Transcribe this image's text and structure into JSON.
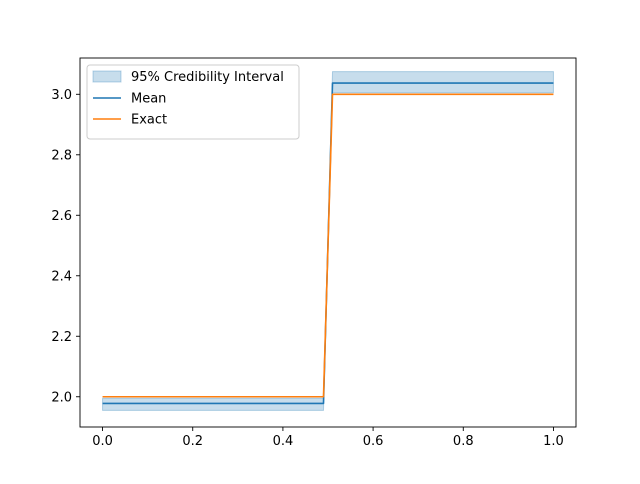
{
  "chart_data": {
    "type": "line",
    "title": "",
    "xlabel": "",
    "ylabel": "",
    "xlim": [
      -0.05,
      1.05
    ],
    "ylim": [
      1.9,
      3.12
    ],
    "xticks": [
      0.0,
      0.2,
      0.4,
      0.6,
      0.8,
      1.0
    ],
    "xtick_labels": [
      "0.0",
      "0.2",
      "0.4",
      "0.6",
      "0.8",
      "1.0"
    ],
    "yticks": [
      2.0,
      2.2,
      2.4,
      2.6,
      2.8,
      3.0
    ],
    "ytick_labels": [
      "2.0",
      "2.2",
      "2.4",
      "2.6",
      "2.8",
      "3.0"
    ],
    "grid": false,
    "legend_position": "top-left",
    "interval": {
      "name": "95% Credibility Interval",
      "color": "#1f77b4",
      "opacity": 0.25,
      "x": [
        0.0,
        0.49,
        0.51,
        1.0
      ],
      "lower": [
        1.955,
        1.955,
        3.005,
        3.005
      ],
      "upper": [
        1.995,
        1.995,
        3.075,
        3.075
      ]
    },
    "series": [
      {
        "name": "Mean",
        "color": "#1f77b4",
        "x": [
          0.0,
          0.49,
          0.51,
          1.0
        ],
        "y": [
          1.978,
          1.978,
          3.037,
          3.037
        ]
      },
      {
        "name": "Exact",
        "color": "#ff7f0e",
        "x": [
          0.0,
          0.49,
          0.51,
          1.0
        ],
        "y": [
          2.0,
          2.0,
          3.0,
          3.0
        ]
      }
    ]
  }
}
